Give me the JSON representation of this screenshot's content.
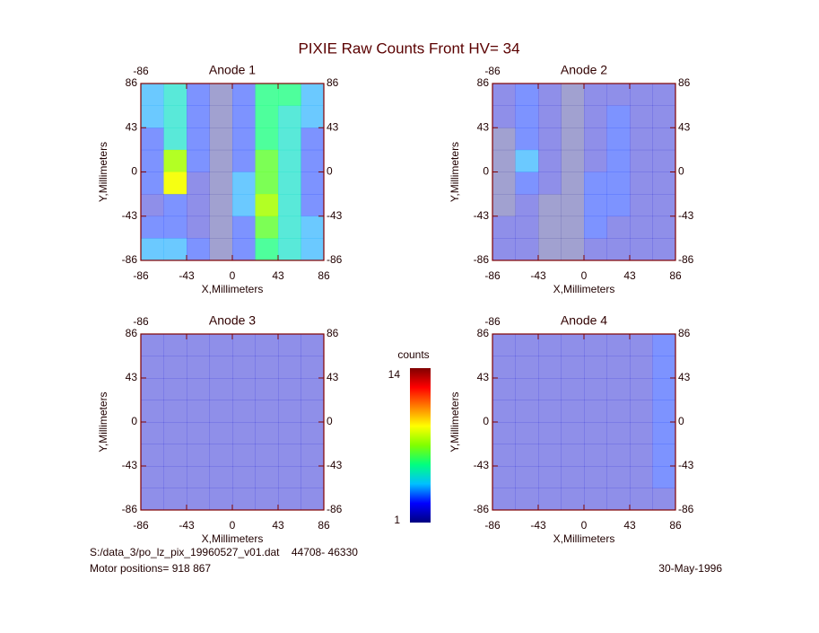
{
  "title": "PIXIE Raw Counts Front HV= 34",
  "chart_data": [
    {
      "type": "heatmap",
      "title": "Anode 1",
      "xlabel": "X,Millimeters",
      "ylabel": "Y,Millimeters",
      "xlim": [
        -86,
        86
      ],
      "ylim": [
        -86,
        86
      ],
      "xticks": [
        -86,
        -43,
        0,
        43,
        86
      ],
      "yticks": [
        -86,
        -43,
        0,
        43,
        86
      ],
      "z": [
        [
          4,
          5,
          3,
          1,
          3,
          6,
          6,
          4
        ],
        [
          4,
          5,
          3,
          1,
          3,
          6,
          5,
          4
        ],
        [
          3,
          5,
          3,
          1,
          3,
          6,
          5,
          3
        ],
        [
          3,
          8,
          3,
          1,
          3,
          7,
          5,
          3
        ],
        [
          3,
          9,
          2,
          1,
          4,
          7,
          5,
          3
        ],
        [
          2,
          3,
          2,
          1,
          4,
          8,
          5,
          3
        ],
        [
          3,
          3,
          2,
          1,
          3,
          7,
          5,
          4
        ],
        [
          4,
          4,
          3,
          1,
          3,
          6,
          5,
          4
        ]
      ]
    },
    {
      "type": "heatmap",
      "title": "Anode 2",
      "xlabel": "X,Millimeters",
      "ylabel": "Y,Millimeters",
      "xlim": [
        -86,
        86
      ],
      "ylim": [
        -86,
        86
      ],
      "xticks": [
        -86,
        -43,
        0,
        43,
        86
      ],
      "yticks": [
        -86,
        -43,
        0,
        43,
        86
      ],
      "z": [
        [
          2,
          3,
          2,
          1,
          2,
          2,
          2,
          2
        ],
        [
          2,
          3,
          2,
          1,
          2,
          3,
          2,
          2
        ],
        [
          1,
          3,
          2,
          1,
          2,
          3,
          2,
          2
        ],
        [
          1,
          4,
          2,
          1,
          2,
          3,
          2,
          2
        ],
        [
          1,
          3,
          2,
          1,
          3,
          3,
          2,
          2
        ],
        [
          1,
          2,
          1,
          1,
          3,
          3,
          2,
          2
        ],
        [
          2,
          2,
          1,
          1,
          3,
          2,
          2,
          2
        ],
        [
          2,
          2,
          1,
          1,
          2,
          2,
          2,
          2
        ]
      ]
    },
    {
      "type": "heatmap",
      "title": "Anode 3",
      "xlabel": "X,Millimeters",
      "ylabel": "Y,Millimeters",
      "xlim": [
        -86,
        86
      ],
      "ylim": [
        -86,
        86
      ],
      "xticks": [
        -86,
        -43,
        0,
        43,
        86
      ],
      "yticks": [
        -86,
        -43,
        0,
        43,
        86
      ],
      "z": [
        [
          2,
          2,
          2,
          2,
          2,
          2,
          2,
          2
        ],
        [
          2,
          2,
          2,
          2,
          2,
          2,
          2,
          2
        ],
        [
          2,
          2,
          2,
          2,
          2,
          2,
          2,
          2
        ],
        [
          2,
          2,
          2,
          2,
          2,
          2,
          2,
          2
        ],
        [
          2,
          2,
          2,
          2,
          2,
          2,
          2,
          2
        ],
        [
          2,
          2,
          2,
          2,
          2,
          2,
          2,
          2
        ],
        [
          2,
          2,
          2,
          2,
          2,
          2,
          2,
          2
        ],
        [
          2,
          2,
          2,
          2,
          2,
          2,
          2,
          2
        ]
      ]
    },
    {
      "type": "heatmap",
      "title": "Anode 4",
      "xlabel": "X,Millimeters",
      "ylabel": "Y,Millimeters",
      "xlim": [
        -86,
        86
      ],
      "ylim": [
        -86,
        86
      ],
      "xticks": [
        -86,
        -43,
        0,
        43,
        86
      ],
      "yticks": [
        -86,
        -43,
        0,
        43,
        86
      ],
      "z": [
        [
          2,
          2,
          2,
          2,
          2,
          2,
          2,
          3
        ],
        [
          2,
          2,
          2,
          2,
          2,
          2,
          2,
          3
        ],
        [
          2,
          2,
          2,
          2,
          2,
          2,
          2,
          3
        ],
        [
          2,
          2,
          2,
          2,
          2,
          2,
          2,
          3
        ],
        [
          2,
          2,
          2,
          2,
          2,
          2,
          2,
          3
        ],
        [
          2,
          2,
          2,
          2,
          2,
          2,
          2,
          3
        ],
        [
          2,
          2,
          2,
          2,
          2,
          2,
          2,
          3
        ],
        [
          2,
          2,
          2,
          2,
          2,
          2,
          2,
          2
        ]
      ]
    }
  ],
  "colorbar": {
    "label": "counts",
    "min": 1,
    "max": 14,
    "colors": [
      "#000080",
      "#0000ff",
      "#00c0ff",
      "#00ff80",
      "#80ff00",
      "#ffff00",
      "#ff8000",
      "#ff0000",
      "#800000"
    ]
  },
  "footer": {
    "file": "S:/data_3/po_lz_pix_19960527_v01.dat    44708- 46330",
    "motor": "Motor positions= 918 867",
    "date": "30-May-1996"
  }
}
